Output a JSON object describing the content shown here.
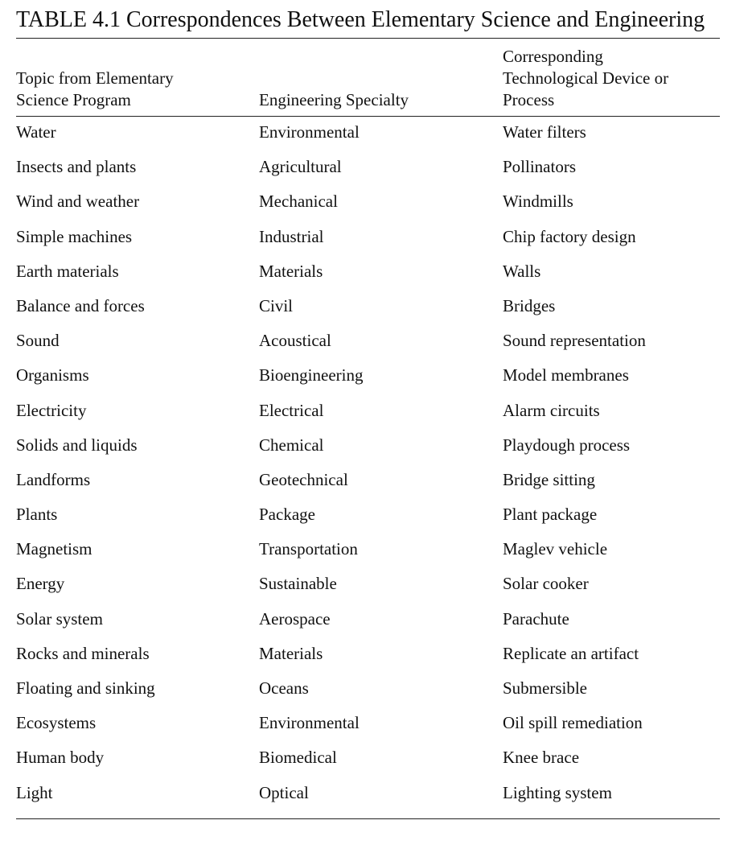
{
  "table": {
    "title": "TABLE 4.1 Correspondences Between Elementary Science and Engineering",
    "columns": [
      "Topic from Elementary\nScience Program",
      "Engineering Specialty",
      "Corresponding\nTechnological Device or\nProcess"
    ],
    "rows": [
      [
        "Water",
        "Environmental",
        "Water filters"
      ],
      [
        "Insects and plants",
        "Agricultural",
        "Pollinators"
      ],
      [
        "Wind and weather",
        "Mechanical",
        "Windmills"
      ],
      [
        "Simple machines",
        "Industrial",
        "Chip factory design"
      ],
      [
        "Earth materials",
        "Materials",
        "Walls"
      ],
      [
        "Balance and forces",
        "Civil",
        "Bridges"
      ],
      [
        "Sound",
        "Acoustical",
        "Sound representation"
      ],
      [
        "Organisms",
        "Bioengineering",
        "Model membranes"
      ],
      [
        "Electricity",
        "Electrical",
        "Alarm circuits"
      ],
      [
        "Solids and liquids",
        "Chemical",
        "Playdough process"
      ],
      [
        "Landforms",
        "Geotechnical",
        "Bridge sitting"
      ],
      [
        "Plants",
        "Package",
        "Plant package"
      ],
      [
        "Magnetism",
        "Transportation",
        "Maglev vehicle"
      ],
      [
        "Energy",
        "Sustainable",
        "Solar cooker"
      ],
      [
        "Solar system",
        "Aerospace",
        "Parachute"
      ],
      [
        "Rocks and minerals",
        "Materials",
        "Replicate an artifact"
      ],
      [
        "Floating and sinking",
        "Oceans",
        "Submersible"
      ],
      [
        "Ecosystems",
        "Environmental",
        "Oil spill remediation"
      ],
      [
        "Human body",
        "Biomedical",
        "Knee brace"
      ],
      [
        "Light",
        "Optical",
        "Lighting system"
      ]
    ]
  }
}
